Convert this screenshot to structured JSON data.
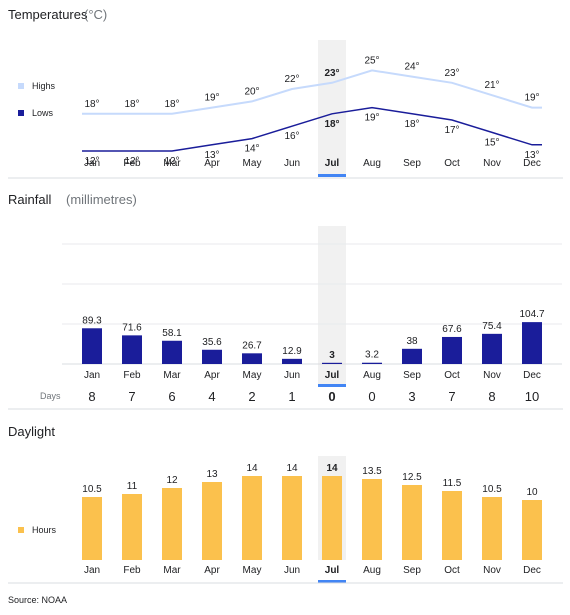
{
  "temperatures": {
    "title": "Temperatures",
    "unit": "(°C)",
    "legend": [
      {
        "label": "Highs",
        "color": "#c6dafc"
      },
      {
        "label": "Lows",
        "color": "#1a1d9a"
      }
    ]
  },
  "rainfall": {
    "title": "Rainfall",
    "unit": "(millimetres)",
    "days_label": "Days"
  },
  "daylight": {
    "title": "Daylight",
    "legend": [
      {
        "label": "Hours",
        "color": "#fbc14d"
      }
    ]
  },
  "source": "Source: NOAA",
  "selected_month": "Jul",
  "colors": {
    "highs": "#c6dafc",
    "lows": "#1a1d9a",
    "rain_bar": "#1a1d9a",
    "daylight_bar": "#fbc14d",
    "highlight": "#f1f1f1",
    "accent": "#4285f4",
    "grid": "#e8eaed",
    "axis": "#dadce0"
  },
  "chart_data": [
    {
      "type": "line",
      "categories": [
        "Jan",
        "Feb",
        "Mar",
        "Apr",
        "May",
        "Jun",
        "Jul",
        "Aug",
        "Sep",
        "Oct",
        "Nov",
        "Dec"
      ],
      "series": [
        {
          "name": "Highs",
          "values": [
            18,
            18,
            18,
            19,
            20,
            22,
            23,
            25,
            24,
            23,
            21,
            19
          ]
        },
        {
          "name": "Lows",
          "values": [
            12,
            12,
            12,
            13,
            14,
            16,
            18,
            19,
            18,
            17,
            15,
            13
          ]
        }
      ],
      "title": "Temperatures",
      "ylabel": "(°C)",
      "value_suffix": "°",
      "legend_position": "left"
    },
    {
      "type": "bar",
      "categories": [
        "Jan",
        "Feb",
        "Mar",
        "Apr",
        "May",
        "Jun",
        "Jul",
        "Aug",
        "Sep",
        "Oct",
        "Nov",
        "Dec"
      ],
      "values": [
        89.3,
        71.6,
        58.1,
        35.6,
        26.7,
        12.9,
        3,
        3.2,
        38,
        67.6,
        75.4,
        104.7
      ],
      "days": [
        8,
        7,
        6,
        4,
        2,
        1,
        0,
        0,
        3,
        7,
        8,
        10
      ],
      "title": "Rainfall",
      "ylabel": "(millimetres)",
      "ylim": [
        0,
        200
      ],
      "grid": true
    },
    {
      "type": "bar",
      "categories": [
        "Jan",
        "Feb",
        "Mar",
        "Apr",
        "May",
        "Jun",
        "Jul",
        "Aug",
        "Sep",
        "Oct",
        "Nov",
        "Dec"
      ],
      "values": [
        10.5,
        11,
        12,
        13,
        14,
        14,
        14,
        13.5,
        12.5,
        11.5,
        10.5,
        10
      ],
      "title": "Daylight",
      "series_name": "Hours",
      "ylim": [
        0,
        15
      ],
      "legend_position": "left"
    }
  ]
}
